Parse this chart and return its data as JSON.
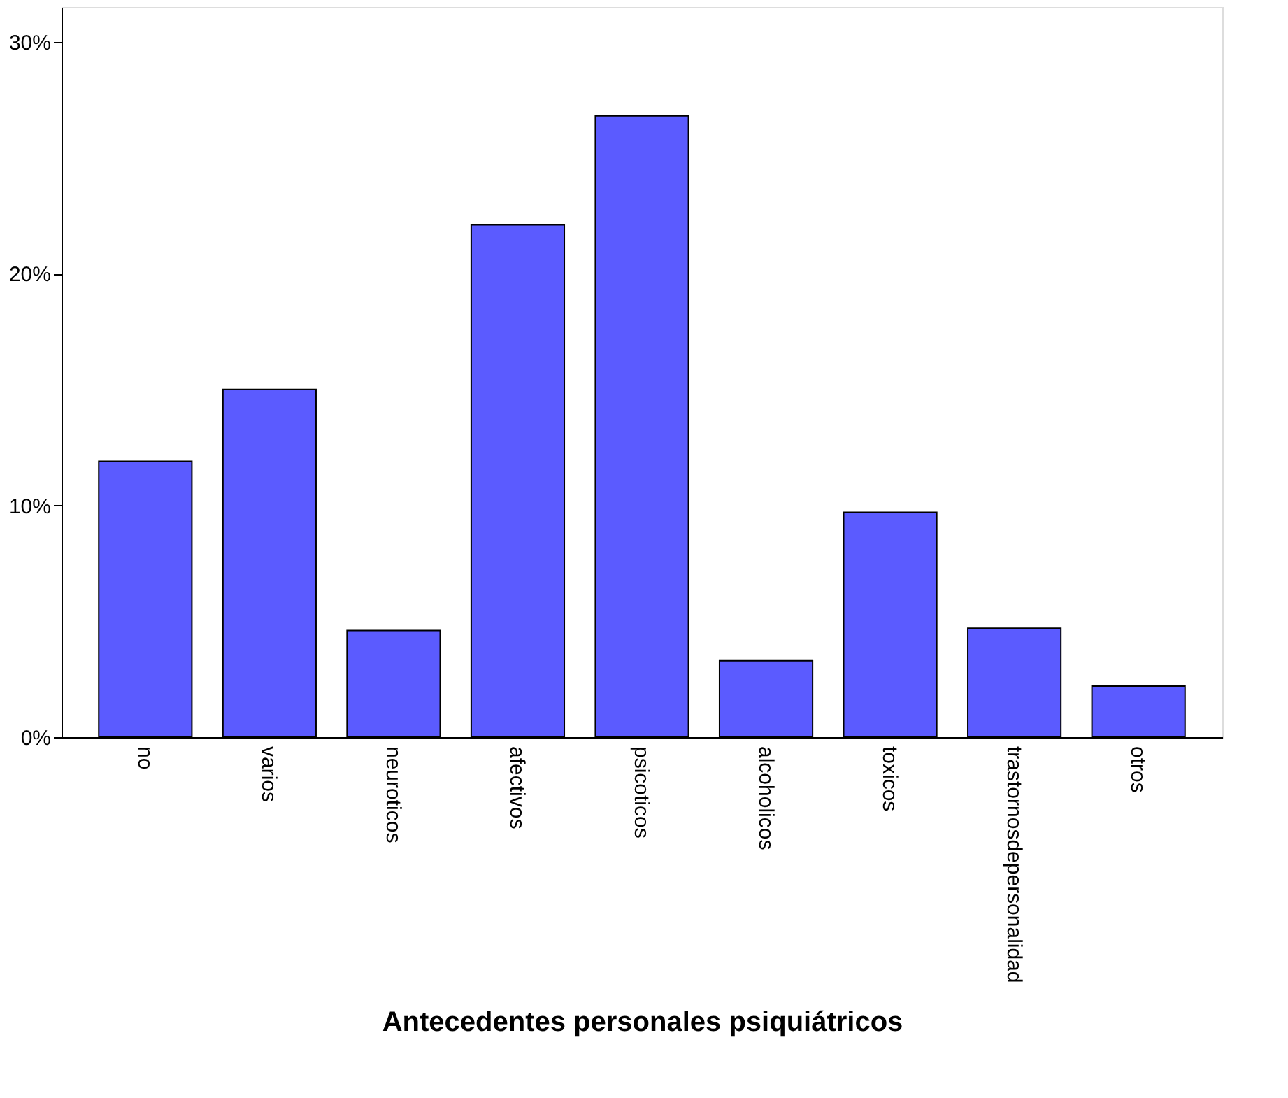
{
  "chart_data": {
    "type": "bar",
    "xlabel": "Antecedentes personales psiquiátricos",
    "categories": [
      "no",
      "varios",
      "neuroticos",
      "afectivos",
      "psicoticos",
      "alcoholicos",
      "toxicos",
      "trastornosdepersonalidad",
      "otros"
    ],
    "values": [
      11.9,
      15.0,
      4.6,
      22.1,
      26.8,
      3.3,
      9.7,
      4.7,
      2.2
    ],
    "color": "#5b5bff",
    "ylim": [
      0,
      31.5
    ],
    "yticks": [
      {
        "value": 0,
        "label": "0%"
      },
      {
        "value": 10,
        "label": "10%"
      },
      {
        "value": 20,
        "label": "20%"
      },
      {
        "value": 30,
        "label": "30%"
      }
    ],
    "grid": false
  }
}
